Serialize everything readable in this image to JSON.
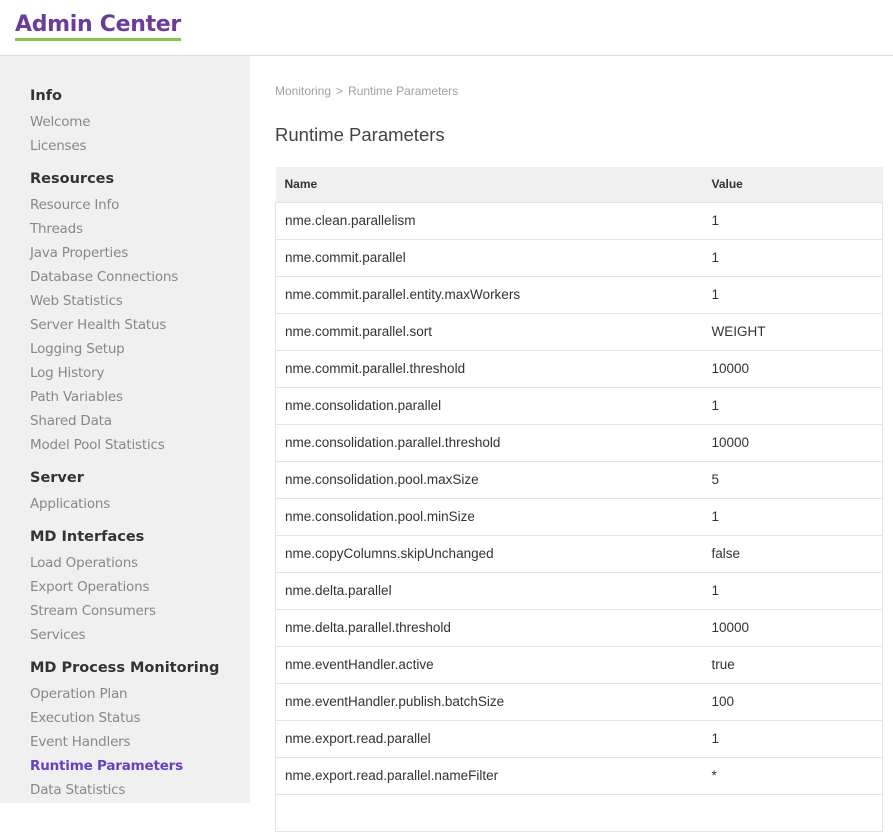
{
  "header": {
    "title": "Admin Center"
  },
  "sidebar": {
    "groups": [
      {
        "heading": "Info",
        "items": [
          "Welcome",
          "Licenses"
        ]
      },
      {
        "heading": "Resources",
        "items": [
          "Resource Info",
          "Threads",
          "Java Properties",
          "Database Connections",
          "Web Statistics",
          "Server Health Status",
          "Logging Setup",
          "Log History",
          "Path Variables",
          "Shared Data",
          "Model Pool Statistics"
        ]
      },
      {
        "heading": "Server",
        "items": [
          "Applications"
        ]
      },
      {
        "heading": "MD Interfaces",
        "items": [
          "Load Operations",
          "Export Operations",
          "Stream Consumers",
          "Services"
        ]
      },
      {
        "heading": "MD Process Monitoring",
        "items": [
          "Operation Plan",
          "Execution Status",
          "Event Handlers",
          "Runtime Parameters",
          "Data Statistics"
        ]
      }
    ],
    "active": "Runtime Parameters"
  },
  "breadcrumb": {
    "parent": "Monitoring",
    "separator": ">",
    "current": "Runtime Parameters"
  },
  "main": {
    "title": "Runtime Parameters"
  },
  "table": {
    "headers": [
      "Name",
      "Value"
    ],
    "rows": [
      [
        "nme.clean.parallelism",
        "1"
      ],
      [
        "nme.commit.parallel",
        "1"
      ],
      [
        "nme.commit.parallel.entity.maxWorkers",
        "1"
      ],
      [
        "nme.commit.parallel.sort",
        "WEIGHT"
      ],
      [
        "nme.commit.parallel.threshold",
        "10000"
      ],
      [
        "nme.consolidation.parallel",
        "1"
      ],
      [
        "nme.consolidation.parallel.threshold",
        "10000"
      ],
      [
        "nme.consolidation.pool.maxSize",
        "5"
      ],
      [
        "nme.consolidation.pool.minSize",
        "1"
      ],
      [
        "nme.copyColumns.skipUnchanged",
        "false"
      ],
      [
        "nme.delta.parallel",
        "1"
      ],
      [
        "nme.delta.parallel.threshold",
        "10000"
      ],
      [
        "nme.eventHandler.active",
        "true"
      ],
      [
        "nme.eventHandler.publish.batchSize",
        "100"
      ],
      [
        "nme.export.read.parallel",
        "1"
      ],
      [
        "nme.export.read.parallel.nameFilter",
        "*"
      ],
      [
        "",
        ""
      ]
    ]
  },
  "colors": {
    "brand": "#6a3d9a",
    "accent_underline": "#8bc34a",
    "active_link": "#6a3fbf"
  }
}
